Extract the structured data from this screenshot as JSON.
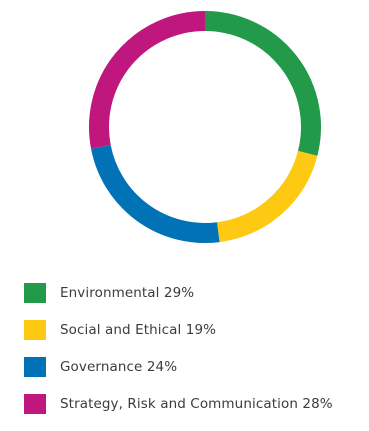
{
  "chart_data": {
    "type": "pie",
    "style": "donut",
    "categories": [
      "Environmental",
      "Social and Ethical",
      "Governance",
      "Strategy, Risk and Communication"
    ],
    "values": [
      29,
      19,
      24,
      28
    ],
    "unit": "%",
    "colors": [
      "#239a4a",
      "#fdc913",
      "#0072b5",
      "#c0177f"
    ],
    "legend": [
      "Environmental 29%",
      "Social and Ethical 19%",
      "Governance 24%",
      "Strategy, Risk and Communication 28%"
    ],
    "title": "",
    "legend_position": "bottom-left"
  }
}
